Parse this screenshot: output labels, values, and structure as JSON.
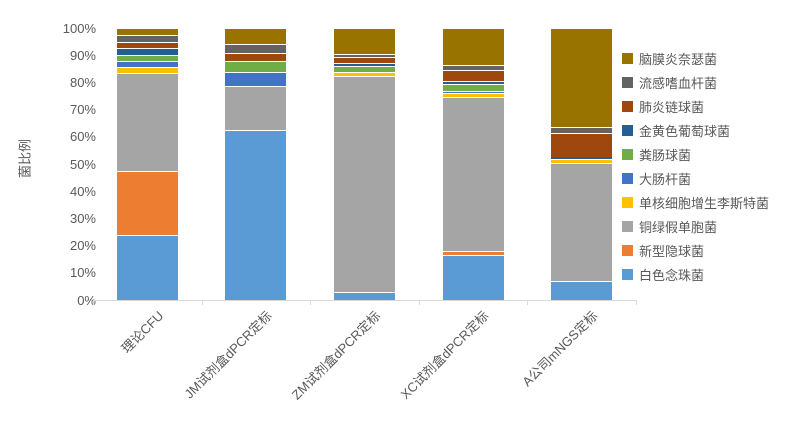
{
  "chart_data": {
    "type": "bar",
    "subtype": "stacked-100-percent",
    "title": "",
    "xlabel": "",
    "ylabel": "菌比例",
    "ylim": [
      0,
      100
    ],
    "grid": false,
    "legend_position": "right",
    "legend_order": "top entry corresponds to topmost stack segment",
    "y_tick_labels": [
      "0%",
      "10%",
      "20%",
      "30%",
      "40%",
      "50%",
      "60%",
      "70%",
      "80%",
      "90%",
      "100%"
    ],
    "categories": [
      "理论CFU",
      "JM试剂盒dPCR定标",
      "ZM试剂盒dPCR定标",
      "XC试剂盒dPCR定标",
      "A公司mNGS定标"
    ],
    "series": [
      {
        "name": "白色念珠菌",
        "color": "#5B9BD5",
        "values": [
          24,
          62.5,
          3,
          16.5,
          7
        ]
      },
      {
        "name": "新型隐球菌",
        "color": "#ED7D31",
        "values": [
          23.5,
          0,
          0,
          1.5,
          0
        ]
      },
      {
        "name": "铜绿假单胞菌",
        "color": "#A5A5A5",
        "values": [
          36,
          16,
          79.5,
          56.5,
          43.5
        ]
      },
      {
        "name": "单核细胞增生李斯特菌",
        "color": "#FFC000",
        "values": [
          2,
          0,
          1.5,
          1.5,
          1.5
        ]
      },
      {
        "name": "大肠杆菌",
        "color": "#4472C4",
        "values": [
          2.5,
          5.5,
          0,
          1,
          0
        ]
      },
      {
        "name": "粪肠球菌",
        "color": "#70AD47",
        "values": [
          2,
          4,
          2,
          2.5,
          0
        ]
      },
      {
        "name": "金黄色葡萄球菌",
        "color": "#255E91",
        "values": [
          2.5,
          0,
          1,
          1,
          0.5
        ]
      },
      {
        "name": "肺炎链球菌",
        "color": "#9E480E",
        "values": [
          2.5,
          3,
          2.5,
          4,
          9
        ]
      },
      {
        "name": "流感嗜血杆菌",
        "color": "#636363",
        "values": [
          2.5,
          3,
          1,
          2,
          2
        ]
      },
      {
        "name": "脑膜炎奈瑟菌",
        "color": "#997300",
        "values": [
          2.5,
          6,
          9.5,
          13.5,
          36.5
        ]
      }
    ],
    "axis_color": "#d9d9d9",
    "label_color": "#595959"
  }
}
